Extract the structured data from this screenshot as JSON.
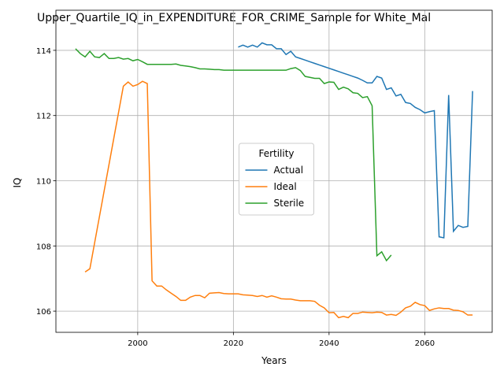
{
  "chart_data": {
    "type": "line",
    "title": "Upper_Quartile_IQ_in_EXPENDITURE_FOR_CRIME_Sample for White_Mal",
    "xlabel": "Years",
    "ylabel": "IQ",
    "x": [
      1987,
      1988,
      1989,
      1990,
      1991,
      1992,
      1993,
      1994,
      1995,
      1996,
      1997,
      1998,
      1999,
      2000,
      2001,
      2002,
      2003,
      2004,
      2005,
      2006,
      2007,
      2008,
      2009,
      2010,
      2011,
      2012,
      2013,
      2014,
      2015,
      2016,
      2017,
      2018,
      2019,
      2020,
      2021,
      2022,
      2023,
      2024,
      2025,
      2026,
      2027,
      2028,
      2029,
      2030,
      2031,
      2032,
      2033,
      2034,
      2035,
      2036,
      2037,
      2038,
      2039,
      2040,
      2041,
      2042,
      2043,
      2044,
      2045,
      2046,
      2047,
      2048,
      2049,
      2050,
      2051,
      2052,
      2053,
      2054,
      2055,
      2056,
      2057,
      2058,
      2059,
      2060,
      2061,
      2062,
      2063,
      2064,
      2065,
      2066,
      2067,
      2068,
      2069,
      2070
    ],
    "series": [
      {
        "name": "Actual",
        "color": "#1f77b4",
        "values": [
          null,
          null,
          null,
          null,
          null,
          null,
          null,
          null,
          null,
          null,
          null,
          null,
          null,
          null,
          null,
          null,
          null,
          null,
          null,
          null,
          null,
          null,
          null,
          null,
          null,
          null,
          null,
          null,
          null,
          null,
          null,
          null,
          null,
          null,
          114.1,
          114.16,
          114.1,
          114.16,
          114.1,
          114.23,
          114.17,
          114.17,
          114.05,
          114.05,
          113.87,
          113.97,
          113.8,
          113.75,
          113.7,
          113.65,
          113.6,
          113.55,
          113.5,
          113.45,
          113.4,
          113.35,
          113.3,
          113.25,
          113.2,
          113.15,
          113.08,
          113.0,
          113.0,
          113.2,
          113.15,
          112.8,
          112.85,
          112.6,
          112.65,
          112.4,
          112.37,
          112.25,
          112.18,
          112.08,
          112.12,
          112.15,
          108.28,
          108.25,
          112.63,
          108.45,
          108.63,
          108.57,
          108.6,
          112.75
        ]
      },
      {
        "name": "Ideal",
        "color": "#ff7f0e",
        "values": [
          null,
          null,
          107.2,
          107.3,
          108.1,
          108.9,
          109.7,
          110.5,
          111.3,
          112.1,
          112.9,
          113.03,
          112.9,
          112.95,
          113.05,
          112.98,
          106.93,
          106.77,
          106.77,
          106.65,
          106.55,
          106.45,
          106.33,
          106.33,
          106.43,
          106.48,
          106.48,
          106.41,
          106.55,
          106.56,
          106.57,
          106.54,
          106.53,
          106.53,
          106.53,
          106.5,
          106.49,
          106.48,
          106.45,
          106.48,
          106.43,
          106.47,
          106.43,
          106.38,
          106.37,
          106.37,
          106.34,
          106.32,
          106.32,
          106.32,
          106.3,
          106.18,
          106.1,
          105.95,
          105.96,
          105.8,
          105.84,
          105.8,
          105.93,
          105.93,
          105.97,
          105.96,
          105.95,
          105.97,
          105.96,
          105.88,
          105.9,
          105.87,
          105.97,
          106.1,
          106.15,
          106.27,
          106.2,
          106.17,
          106.02,
          106.07,
          106.1,
          106.08,
          106.08,
          106.03,
          106.02,
          105.98,
          105.88,
          105.88
        ]
      },
      {
        "name": "Sterile",
        "color": "#2ca02c",
        "values": [
          114.05,
          113.9,
          113.8,
          113.97,
          113.8,
          113.78,
          113.9,
          113.75,
          113.75,
          113.78,
          113.73,
          113.75,
          113.68,
          113.72,
          113.65,
          113.57,
          113.57,
          113.57,
          113.57,
          113.57,
          113.57,
          113.58,
          113.54,
          113.52,
          113.5,
          113.47,
          113.43,
          113.43,
          113.42,
          113.41,
          113.41,
          113.39,
          113.39,
          113.39,
          113.39,
          113.39,
          113.39,
          113.39,
          113.39,
          113.39,
          113.39,
          113.39,
          113.39,
          113.39,
          113.39,
          113.44,
          113.47,
          113.38,
          113.2,
          113.17,
          113.14,
          113.14,
          112.98,
          113.03,
          113.02,
          112.8,
          112.87,
          112.82,
          112.7,
          112.68,
          112.55,
          112.58,
          112.3,
          107.7,
          107.82,
          107.55,
          107.72,
          null,
          null,
          null,
          null,
          null,
          null,
          null,
          null,
          null,
          null,
          null,
          null,
          null,
          null,
          null,
          null,
          null
        ]
      }
    ],
    "xlim": [
      1982.9,
      2074.1
    ],
    "ylim": [
      105.35,
      115.23
    ],
    "xticks": [
      2000,
      2020,
      2040,
      2060
    ],
    "yticks": [
      106,
      108,
      110,
      112,
      114
    ],
    "grid": true,
    "legend_title": "Fertility",
    "legend_position": "center"
  }
}
